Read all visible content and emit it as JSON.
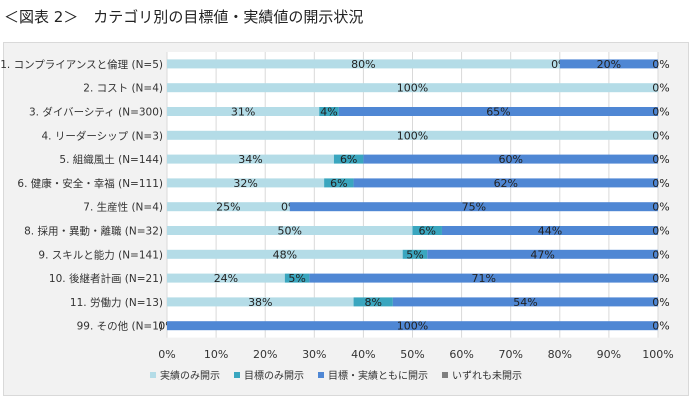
{
  "title": "＜図表 2＞　カテゴリ別の目標値・実績値の開示状況",
  "chart_data": {
    "type": "bar",
    "orientation": "horizontal",
    "stacked": "100%",
    "title": "＜図表 2＞　カテゴリ別の目標値・実績値の開示状況",
    "xlim": [
      0,
      100
    ],
    "x_ticks": [
      "0%",
      "10%",
      "20%",
      "30%",
      "40%",
      "50%",
      "60%",
      "70%",
      "80%",
      "90%",
      "100%"
    ],
    "grid": "vertical",
    "legend_position": "bottom",
    "categories": [
      "1. コンプライアンスと倫理 (N=5)",
      "2. コスト (N=4)",
      "3. ダイバーシティ (N=300)",
      "4. リーダーシップ (N=3)",
      "5. 組織風土 (N=144)",
      "6. 健康・安全・幸福 (N=111)",
      "7. 生産性 (N=4)",
      "8. 採用・異動・離職 (N=32)",
      "9. スキルと能力 (N=141)",
      "10. 後継者計画 (N=21)",
      "11. 労働力 (N=13)",
      "99. その他 (N=1)"
    ],
    "series": [
      {
        "name": "実績のみ開示",
        "color": "#b4dce7",
        "values": [
          80,
          100,
          31,
          100,
          34,
          32,
          25,
          50,
          48,
          24,
          38,
          0
        ],
        "shown_labels": [
          true,
          true,
          true,
          true,
          true,
          true,
          true,
          true,
          true,
          true,
          true,
          true
        ]
      },
      {
        "name": "目標のみ開示",
        "color": "#3aa6bf",
        "values": [
          0,
          0,
          4,
          0,
          6,
          6,
          0,
          6,
          5,
          5,
          8,
          0
        ],
        "shown_labels": [
          true,
          false,
          true,
          false,
          true,
          true,
          true,
          true,
          true,
          true,
          true,
          false
        ]
      },
      {
        "name": "目標・実績ともに開示",
        "color": "#4f87d4",
        "values": [
          20,
          0,
          65,
          0,
          60,
          62,
          75,
          44,
          47,
          71,
          54,
          100
        ],
        "shown_labels": [
          true,
          false,
          true,
          false,
          true,
          true,
          true,
          true,
          true,
          true,
          true,
          true
        ]
      },
      {
        "name": "いずれも未開示",
        "color": "#7f7f7f",
        "values": [
          0,
          0,
          0,
          0,
          0,
          0,
          0,
          0,
          0,
          0,
          0,
          0
        ],
        "shown_labels": [
          true,
          true,
          true,
          true,
          true,
          true,
          true,
          true,
          true,
          true,
          true,
          true
        ]
      }
    ]
  }
}
